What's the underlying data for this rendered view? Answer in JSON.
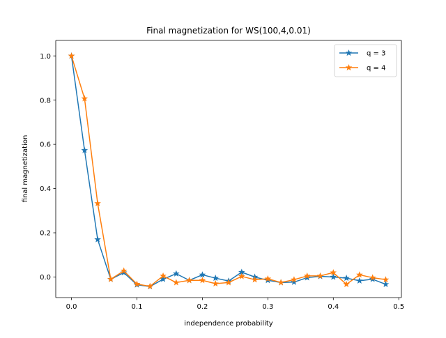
{
  "chart_data": {
    "type": "line",
    "title": "Final magnetization for WS(100,4,0.01)",
    "xlabel": "independence probability",
    "ylabel": "final magnetization",
    "xlim": [
      -0.024,
      0.504
    ],
    "ylim": [
      -0.093,
      1.07
    ],
    "xticks": [
      0.0,
      0.1,
      0.2,
      0.3,
      0.4,
      0.5
    ],
    "xtick_labels": [
      "0.0",
      "0.1",
      "0.2",
      "0.3",
      "0.4",
      "0.5"
    ],
    "yticks": [
      0.0,
      0.2,
      0.4,
      0.6,
      0.8,
      1.0
    ],
    "ytick_labels": [
      "0.0",
      "0.2",
      "0.4",
      "0.6",
      "0.8",
      "1.0"
    ],
    "grid": false,
    "legend_position": "top-right",
    "marker": "star",
    "x": [
      0.0,
      0.02,
      0.04,
      0.06,
      0.08,
      0.1,
      0.12,
      0.14,
      0.16,
      0.18,
      0.2,
      0.22,
      0.24,
      0.26,
      0.28,
      0.3,
      0.32,
      0.34,
      0.36,
      0.38,
      0.4,
      0.42,
      0.44,
      0.46,
      0.48
    ],
    "series": [
      {
        "name": "q = 3",
        "color": "#1f77b4",
        "values": [
          1.0,
          0.573,
          0.17,
          -0.01,
          0.02,
          -0.035,
          -0.043,
          -0.01,
          0.015,
          -0.015,
          0.01,
          -0.005,
          -0.018,
          0.022,
          0.0,
          -0.015,
          -0.025,
          -0.023,
          -0.003,
          0.003,
          0.0,
          -0.005,
          -0.017,
          -0.01,
          -0.033
        ]
      },
      {
        "name": "q = 4",
        "color": "#ff7f0e",
        "values": [
          1.0,
          0.807,
          0.333,
          -0.01,
          0.028,
          -0.032,
          -0.042,
          0.005,
          -0.025,
          -0.015,
          -0.015,
          -0.03,
          -0.025,
          0.003,
          -0.012,
          -0.008,
          -0.025,
          -0.012,
          0.005,
          0.005,
          0.02,
          -0.033,
          0.01,
          -0.003,
          -0.012
        ]
      }
    ]
  }
}
